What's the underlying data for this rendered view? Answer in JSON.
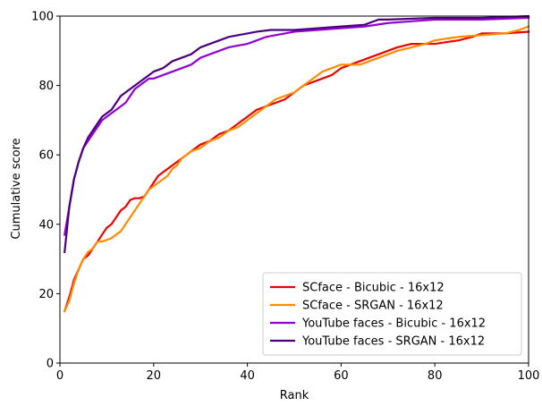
{
  "chart_data": {
    "type": "line",
    "title": "",
    "xlabel": "Rank",
    "ylabel": "Cumulative score",
    "xlim": [
      0,
      100
    ],
    "ylim": [
      0,
      100
    ],
    "xticks": [
      0,
      20,
      40,
      60,
      80,
      100
    ],
    "yticks": [
      0,
      20,
      40,
      60,
      80,
      100
    ],
    "grid": false,
    "legend_position": "lower-right",
    "series": [
      {
        "name": "SCface - Bicubic - 16x12",
        "color": "#ee0000",
        "points": [
          [
            1,
            15
          ],
          [
            2,
            19
          ],
          [
            3,
            24
          ],
          [
            4,
            27
          ],
          [
            5,
            30
          ],
          [
            6,
            31
          ],
          [
            7,
            33
          ],
          [
            8,
            35
          ],
          [
            9,
            37
          ],
          [
            10,
            39
          ],
          [
            11,
            40
          ],
          [
            12,
            42
          ],
          [
            13,
            44
          ],
          [
            14,
            45
          ],
          [
            15,
            47
          ],
          [
            16,
            47.5
          ],
          [
            17,
            47.5
          ],
          [
            18,
            48
          ],
          [
            19,
            50
          ],
          [
            20,
            52
          ],
          [
            21,
            54
          ],
          [
            22,
            55
          ],
          [
            23,
            56
          ],
          [
            24,
            57
          ],
          [
            25,
            58
          ],
          [
            26,
            59
          ],
          [
            27,
            60
          ],
          [
            28,
            61
          ],
          [
            29,
            62
          ],
          [
            30,
            63
          ],
          [
            32,
            64
          ],
          [
            34,
            66
          ],
          [
            36,
            67
          ],
          [
            38,
            69
          ],
          [
            40,
            71
          ],
          [
            42,
            73
          ],
          [
            44,
            74
          ],
          [
            46,
            75
          ],
          [
            48,
            76
          ],
          [
            50,
            78
          ],
          [
            52,
            80
          ],
          [
            54,
            81
          ],
          [
            56,
            82
          ],
          [
            58,
            83
          ],
          [
            60,
            85
          ],
          [
            62,
            86
          ],
          [
            64,
            87
          ],
          [
            66,
            88
          ],
          [
            68,
            89
          ],
          [
            70,
            90
          ],
          [
            72,
            91
          ],
          [
            75,
            92
          ],
          [
            80,
            92
          ],
          [
            85,
            93
          ],
          [
            88,
            94
          ],
          [
            90,
            95
          ],
          [
            95,
            95
          ],
          [
            100,
            95.5
          ]
        ]
      },
      {
        "name": "SCface - SRGAN - 16x12",
        "color": "#ff8c00",
        "points": [
          [
            1,
            15
          ],
          [
            2,
            18
          ],
          [
            3,
            23
          ],
          [
            4,
            27
          ],
          [
            5,
            30
          ],
          [
            6,
            32
          ],
          [
            7,
            33
          ],
          [
            8,
            35
          ],
          [
            9,
            35
          ],
          [
            10,
            35.5
          ],
          [
            11,
            36
          ],
          [
            12,
            37
          ],
          [
            13,
            38
          ],
          [
            14,
            40
          ],
          [
            15,
            42
          ],
          [
            16,
            44
          ],
          [
            17,
            46
          ],
          [
            18,
            48
          ],
          [
            19,
            50
          ],
          [
            20,
            51
          ],
          [
            21,
            52
          ],
          [
            22,
            53
          ],
          [
            23,
            54
          ],
          [
            24,
            56
          ],
          [
            25,
            57
          ],
          [
            26,
            59
          ],
          [
            27,
            60
          ],
          [
            28,
            61
          ],
          [
            30,
            62
          ],
          [
            32,
            64
          ],
          [
            34,
            65
          ],
          [
            36,
            67
          ],
          [
            38,
            68
          ],
          [
            40,
            70
          ],
          [
            42,
            72
          ],
          [
            44,
            74
          ],
          [
            46,
            76
          ],
          [
            48,
            77
          ],
          [
            50,
            78
          ],
          [
            52,
            80
          ],
          [
            54,
            82
          ],
          [
            56,
            84
          ],
          [
            58,
            85
          ],
          [
            60,
            86
          ],
          [
            62,
            86
          ],
          [
            64,
            86
          ],
          [
            66,
            87
          ],
          [
            68,
            88
          ],
          [
            70,
            89
          ],
          [
            72,
            90
          ],
          [
            75,
            91
          ],
          [
            78,
            92
          ],
          [
            80,
            93
          ],
          [
            85,
            94
          ],
          [
            90,
            94.5
          ],
          [
            95,
            95
          ],
          [
            98,
            96
          ],
          [
            100,
            97
          ]
        ]
      },
      {
        "name": "YouTube faces - Bicubic - 16x12",
        "color": "#9400d3",
        "points": [
          [
            1,
            37
          ],
          [
            2,
            45
          ],
          [
            3,
            53
          ],
          [
            4,
            58
          ],
          [
            5,
            62
          ],
          [
            6,
            64
          ],
          [
            7,
            66
          ],
          [
            8,
            68
          ],
          [
            9,
            70
          ],
          [
            10,
            71
          ],
          [
            11,
            72
          ],
          [
            12,
            73
          ],
          [
            13,
            74
          ],
          [
            14,
            75
          ],
          [
            15,
            77
          ],
          [
            16,
            79
          ],
          [
            17,
            80
          ],
          [
            18,
            81
          ],
          [
            19,
            82
          ],
          [
            20,
            82
          ],
          [
            22,
            83
          ],
          [
            24,
            84
          ],
          [
            26,
            85
          ],
          [
            28,
            86
          ],
          [
            30,
            88
          ],
          [
            32,
            89
          ],
          [
            34,
            90
          ],
          [
            36,
            91
          ],
          [
            38,
            91.5
          ],
          [
            40,
            92
          ],
          [
            42,
            93
          ],
          [
            44,
            94
          ],
          [
            46,
            94.5
          ],
          [
            48,
            95
          ],
          [
            50,
            95.5
          ],
          [
            55,
            96
          ],
          [
            60,
            96.5
          ],
          [
            65,
            97
          ],
          [
            70,
            98
          ],
          [
            75,
            98.5
          ],
          [
            80,
            99
          ],
          [
            90,
            99
          ],
          [
            100,
            99.5
          ]
        ]
      },
      {
        "name": "YouTube faces - SRGAN - 16x12",
        "color": "#4b0082",
        "points": [
          [
            1,
            32
          ],
          [
            2,
            45
          ],
          [
            3,
            53
          ],
          [
            4,
            58
          ],
          [
            5,
            62
          ],
          [
            6,
            65
          ],
          [
            7,
            67
          ],
          [
            8,
            69
          ],
          [
            9,
            71
          ],
          [
            10,
            72
          ],
          [
            11,
            73
          ],
          [
            12,
            75
          ],
          [
            13,
            77
          ],
          [
            14,
            78
          ],
          [
            15,
            79
          ],
          [
            16,
            80
          ],
          [
            17,
            81
          ],
          [
            18,
            82
          ],
          [
            19,
            83
          ],
          [
            20,
            84
          ],
          [
            22,
            85
          ],
          [
            24,
            87
          ],
          [
            26,
            88
          ],
          [
            28,
            89
          ],
          [
            30,
            91
          ],
          [
            32,
            92
          ],
          [
            34,
            93
          ],
          [
            36,
            94
          ],
          [
            38,
            94.5
          ],
          [
            40,
            95
          ],
          [
            42,
            95.5
          ],
          [
            45,
            96
          ],
          [
            50,
            96
          ],
          [
            55,
            96.5
          ],
          [
            60,
            97
          ],
          [
            65,
            97.5
          ],
          [
            68,
            99
          ],
          [
            70,
            99
          ],
          [
            80,
            99.5
          ],
          [
            90,
            99.5
          ],
          [
            100,
            100
          ]
        ]
      }
    ]
  }
}
